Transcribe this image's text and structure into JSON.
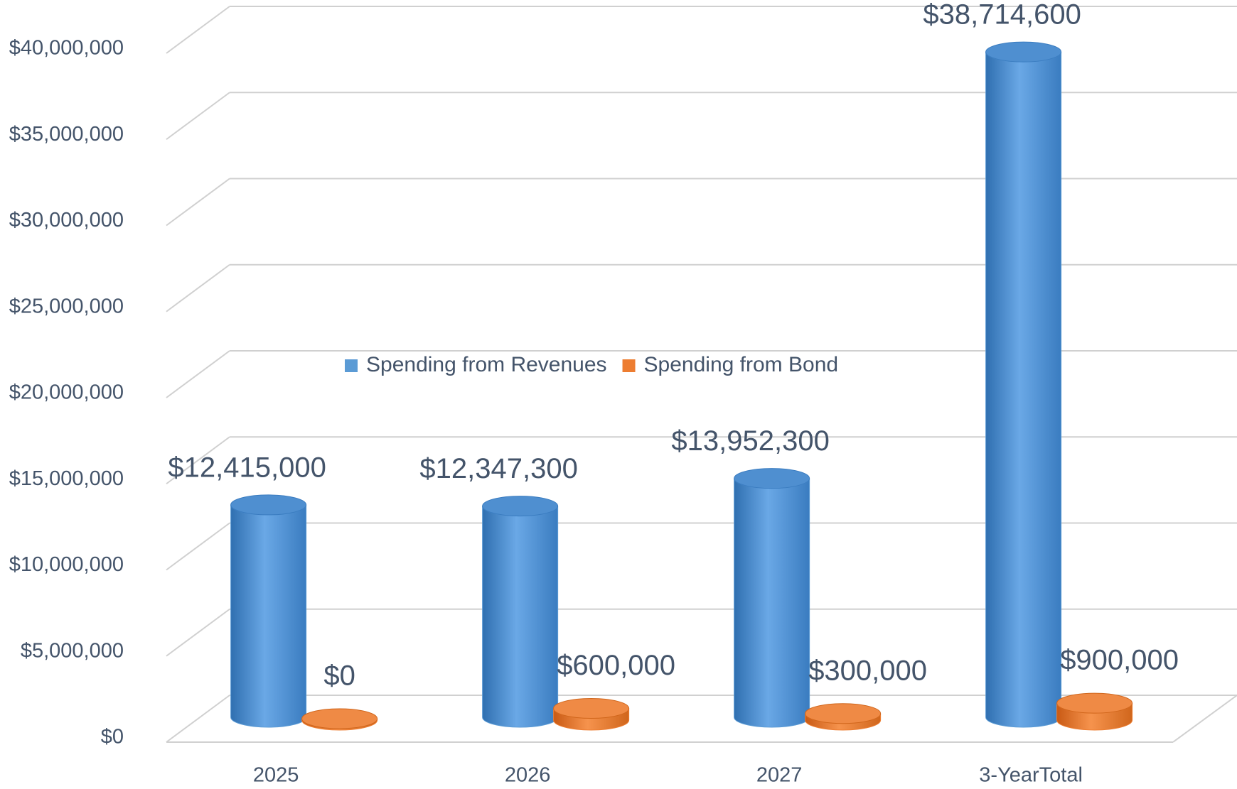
{
  "chart_data": {
    "type": "bar3d",
    "categories": [
      "2025",
      "2026",
      "2027",
      "3-YearTotal"
    ],
    "series": [
      {
        "name": "Spending from Revenues",
        "color": "#5b9bd5",
        "values": [
          12415000,
          12347300,
          13952300,
          38714600
        ],
        "value_labels": [
          "$12,415,000",
          "$12,347,300",
          "$13,952,300",
          "$38,714,600"
        ]
      },
      {
        "name": "Spending from Bond",
        "color": "#ed7d31",
        "values": [
          0,
          600000,
          300000,
          900000
        ],
        "value_labels": [
          "$0",
          "$600,000",
          "$300,000",
          "$900,000"
        ]
      }
    ],
    "ylim": [
      0,
      40000000
    ],
    "yticks": [
      {
        "value": 0,
        "label": "$0"
      },
      {
        "value": 5000000,
        "label": "$5,000,000"
      },
      {
        "value": 10000000,
        "label": "$10,000,000"
      },
      {
        "value": 15000000,
        "label": "$15,000,000"
      },
      {
        "value": 20000000,
        "label": "$20,000,000"
      },
      {
        "value": 25000000,
        "label": "$25,000,000"
      },
      {
        "value": 30000000,
        "label": "$30,000,000"
      },
      {
        "value": 35000000,
        "label": "$35,000,000"
      },
      {
        "value": 40000000,
        "label": "$40,000,000"
      }
    ],
    "grid": true,
    "legend": "center"
  }
}
